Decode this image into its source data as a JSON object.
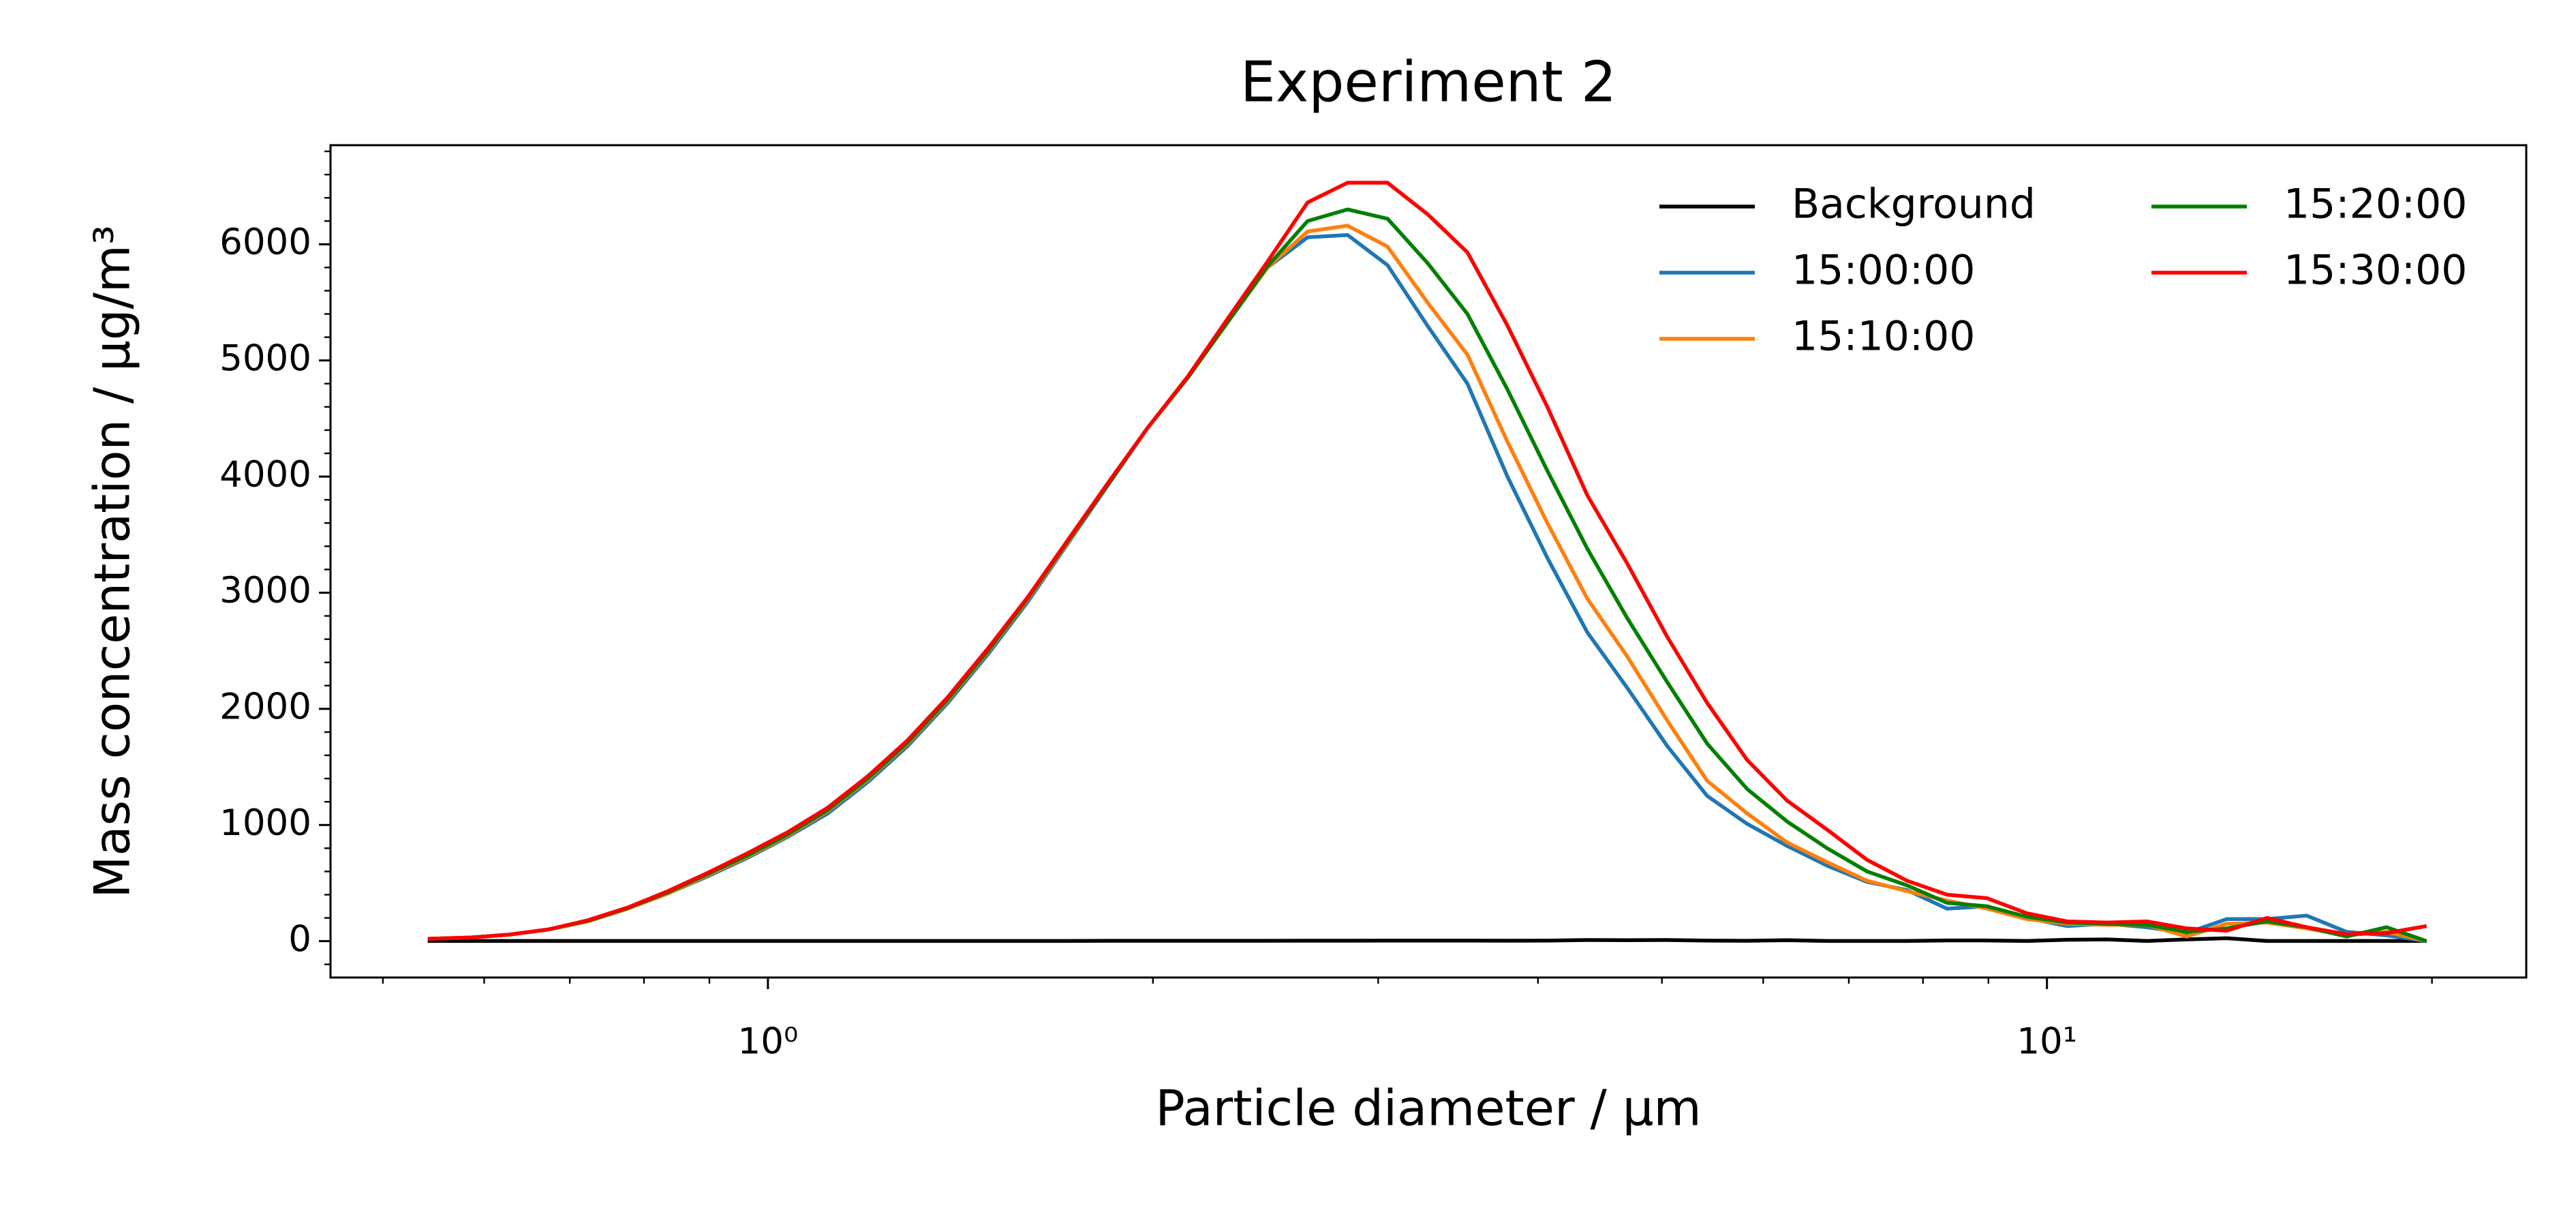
{
  "chart_data": {
    "type": "line",
    "title": "Experiment 2",
    "x_label": "Particle diameter / μm",
    "y_label": "Mass concentration / μg/m³",
    "x_scale": "log",
    "legend": "upper right",
    "legend_columns": 2,
    "x": [
      0.542,
      0.583,
      0.626,
      0.673,
      0.723,
      0.777,
      0.835,
      0.898,
      0.965,
      1.037,
      1.114,
      1.197,
      1.286,
      1.382,
      1.486,
      1.596,
      1.715,
      1.843,
      1.981,
      2.129,
      2.288,
      2.458,
      2.642,
      2.839,
      3.051,
      3.278,
      3.523,
      3.786,
      4.068,
      4.371,
      4.698,
      5.048,
      5.425,
      5.829,
      6.264,
      6.732,
      7.234,
      7.774,
      8.354,
      8.977,
      9.647,
      10.37,
      11.14,
      11.97,
      12.86,
      13.82,
      14.86,
      15.96,
      17.15,
      18.43,
      19.81
    ],
    "series": [
      {
        "name": "Background",
        "color": "#000000",
        "values": [
          2,
          2,
          2,
          2,
          2,
          2,
          2,
          2,
          2,
          2,
          2,
          2,
          2,
          2,
          2,
          2,
          2,
          3,
          3,
          3,
          3,
          3,
          4,
          4,
          5,
          5,
          5,
          4,
          5,
          10,
          8,
          10,
          5,
          3,
          8,
          2,
          2,
          2,
          6,
          6,
          2,
          12,
          15,
          2,
          15,
          25,
          2,
          2,
          2,
          2,
          2
        ]
      },
      {
        "name": "15:00:00",
        "color": "#1f77b4",
        "values": [
          20,
          30,
          55,
          100,
          170,
          280,
          410,
          560,
          720,
          900,
          1100,
          1370,
          1680,
          2050,
          2470,
          2920,
          3420,
          3920,
          4420,
          4850,
          5330,
          5800,
          6060,
          6080,
          5820,
          5300,
          4800,
          4000,
          3300,
          2660,
          2180,
          1680,
          1250,
          1010,
          820,
          650,
          510,
          440,
          280,
          300,
          200,
          130,
          150,
          120,
          70,
          190,
          190,
          220,
          80,
          50,
          0
        ]
      },
      {
        "name": "15:10:00",
        "color": "#ff7f0e",
        "values": [
          20,
          30,
          55,
          100,
          170,
          280,
          410,
          570,
          730,
          910,
          1120,
          1390,
          1700,
          2070,
          2490,
          2940,
          3430,
          3930,
          4420,
          4850,
          5330,
          5800,
          6110,
          6160,
          5980,
          5500,
          5050,
          4300,
          3600,
          2950,
          2450,
          1900,
          1380,
          1100,
          850,
          680,
          520,
          430,
          350,
          280,
          190,
          150,
          140,
          140,
          40,
          150,
          160,
          110,
          50,
          80,
          0
        ]
      },
      {
        "name": "15:20:00",
        "color": "#008000",
        "values": [
          20,
          30,
          55,
          100,
          175,
          285,
          420,
          580,
          740,
          920,
          1130,
          1400,
          1710,
          2080,
          2500,
          2950,
          3440,
          3930,
          4420,
          4850,
          5330,
          5810,
          6200,
          6300,
          6220,
          5840,
          5400,
          4750,
          4050,
          3380,
          2780,
          2230,
          1700,
          1310,
          1030,
          800,
          600,
          480,
          330,
          300,
          210,
          160,
          150,
          140,
          80,
          110,
          170,
          120,
          40,
          120,
          0
        ]
      },
      {
        "name": "15:30:00",
        "color": "#ff0000",
        "values": [
          20,
          30,
          55,
          100,
          180,
          290,
          430,
          590,
          760,
          940,
          1150,
          1420,
          1730,
          2100,
          2520,
          2960,
          3450,
          3940,
          4420,
          4860,
          5360,
          5850,
          6360,
          6530,
          6530,
          6260,
          5930,
          5300,
          4600,
          3840,
          3250,
          2620,
          2050,
          1560,
          1210,
          960,
          700,
          520,
          400,
          370,
          240,
          170,
          160,
          170,
          110,
          90,
          200,
          120,
          60,
          70,
          130
        ]
      }
    ],
    "xlim": [
      0.455,
      23.7
    ],
    "ylim": [
      -313,
      6853
    ],
    "xticks": [
      {
        "value": 1,
        "label": "10⁰"
      },
      {
        "value": 10,
        "label": "10¹"
      }
    ],
    "xminorticks": [
      0.5,
      0.6,
      0.7,
      0.8,
      0.9,
      2,
      3,
      4,
      5,
      6,
      7,
      8,
      9,
      20
    ],
    "yticks": [
      0,
      1000,
      2000,
      3000,
      4000,
      5000,
      6000
    ],
    "yminorticks": [
      -200,
      200,
      400,
      600,
      800,
      1200,
      1400,
      1600,
      1800,
      2200,
      2400,
      2600,
      2800,
      3200,
      3400,
      3600,
      3800,
      4200,
      4400,
      4600,
      4800,
      5200,
      5400,
      5600,
      5800,
      6200,
      6400,
      6600,
      6800
    ]
  }
}
